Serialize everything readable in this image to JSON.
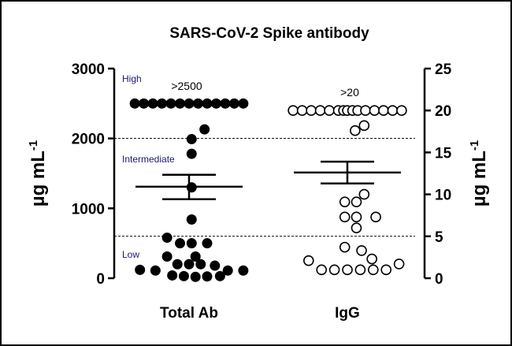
{
  "chart_data": {
    "type": "scatter",
    "title": "SARS-CoV-2 Spike antibody",
    "categories": [
      "Total Ab",
      "IgG"
    ],
    "left_axis": {
      "label_main": "µg mL",
      "label_sup": "-1",
      "ylim": [
        0,
        3000
      ],
      "ticks": [
        "0",
        "1000",
        "2000",
        "3000"
      ]
    },
    "right_axis": {
      "label_main": "µg mL",
      "label_sup": "-1",
      "ylim": [
        0,
        25
      ],
      "ticks": [
        "0",
        "5",
        "10",
        "15",
        "20",
        "25"
      ]
    },
    "zones": [
      {
        "label": "High",
        "boundary_left": 2000
      },
      {
        "label": "Intermediate",
        "boundary_left": 600
      },
      {
        "label": "Low"
      }
    ],
    "annotations": [
      ">2500",
      ">20"
    ],
    "series": [
      {
        "category": "Total Ab",
        "axis": "left",
        "marker": "filled",
        "mean": 1310,
        "sem": [
          1130,
          1480
        ],
        "points": [
          {
            "x": -0.42,
            "y": 2500
          },
          {
            "x": -0.35,
            "y": 2500
          },
          {
            "x": -0.28,
            "y": 2500
          },
          {
            "x": -0.21,
            "y": 2500
          },
          {
            "x": -0.14,
            "y": 2500
          },
          {
            "x": -0.07,
            "y": 2500
          },
          {
            "x": 0.0,
            "y": 2500
          },
          {
            "x": 0.07,
            "y": 2500
          },
          {
            "x": 0.14,
            "y": 2500
          },
          {
            "x": 0.21,
            "y": 2500
          },
          {
            "x": 0.28,
            "y": 2500
          },
          {
            "x": 0.35,
            "y": 2500
          },
          {
            "x": 0.42,
            "y": 2500
          },
          {
            "x": 0.12,
            "y": 2130
          },
          {
            "x": 0.02,
            "y": 1990
          },
          {
            "x": 0.02,
            "y": 1780
          },
          {
            "x": 0.02,
            "y": 1300
          },
          {
            "x": 0.02,
            "y": 840
          },
          {
            "x": -0.17,
            "y": 580
          },
          {
            "x": -0.07,
            "y": 500
          },
          {
            "x": 0.02,
            "y": 500
          },
          {
            "x": 0.14,
            "y": 500
          },
          {
            "x": -0.17,
            "y": 310
          },
          {
            "x": 0.05,
            "y": 310
          },
          {
            "x": -0.09,
            "y": 200
          },
          {
            "x": 0.0,
            "y": 200
          },
          {
            "x": 0.09,
            "y": 200
          },
          {
            "x": 0.2,
            "y": 180
          },
          {
            "x": -0.38,
            "y": 120
          },
          {
            "x": -0.26,
            "y": 110
          },
          {
            "x": 0.3,
            "y": 110
          },
          {
            "x": 0.42,
            "y": 110
          },
          {
            "x": -0.13,
            "y": 40
          },
          {
            "x": -0.04,
            "y": 30
          },
          {
            "x": 0.05,
            "y": 20
          },
          {
            "x": 0.14,
            "y": 25
          },
          {
            "x": 0.24,
            "y": 30
          }
        ]
      },
      {
        "category": "IgG",
        "axis": "right",
        "marker": "open",
        "mean": 12.6,
        "sem": [
          11.3,
          13.9
        ],
        "points": [
          {
            "x": -0.42,
            "y": 20
          },
          {
            "x": -0.35,
            "y": 20
          },
          {
            "x": -0.28,
            "y": 20
          },
          {
            "x": -0.21,
            "y": 20
          },
          {
            "x": -0.14,
            "y": 20
          },
          {
            "x": -0.07,
            "y": 20
          },
          {
            "x": -0.03,
            "y": 20
          },
          {
            "x": 0.0,
            "y": 20
          },
          {
            "x": 0.04,
            "y": 20
          },
          {
            "x": 0.08,
            "y": 20
          },
          {
            "x": 0.14,
            "y": 20
          },
          {
            "x": 0.21,
            "y": 20
          },
          {
            "x": 0.28,
            "y": 20
          },
          {
            "x": 0.35,
            "y": 20
          },
          {
            "x": 0.42,
            "y": 20
          },
          {
            "x": 0.06,
            "y": 17.6
          },
          {
            "x": 0.13,
            "y": 18.2
          },
          {
            "x": 0.13,
            "y": 10.0
          },
          {
            "x": -0.02,
            "y": 9.1
          },
          {
            "x": 0.07,
            "y": 9.1
          },
          {
            "x": -0.02,
            "y": 7.3
          },
          {
            "x": 0.07,
            "y": 7.3
          },
          {
            "x": 0.22,
            "y": 7.3
          },
          {
            "x": 0.07,
            "y": 6.0
          },
          {
            "x": -0.02,
            "y": 3.7
          },
          {
            "x": 0.11,
            "y": 3.3
          },
          {
            "x": 0.19,
            "y": 2.3
          },
          {
            "x": -0.3,
            "y": 2.1
          },
          {
            "x": -0.2,
            "y": 1.0
          },
          {
            "x": -0.1,
            "y": 1.0
          },
          {
            "x": 0.0,
            "y": 1.0
          },
          {
            "x": 0.1,
            "y": 1.0
          },
          {
            "x": 0.2,
            "y": 1.0
          },
          {
            "x": 0.3,
            "y": 1.0
          },
          {
            "x": 0.4,
            "y": 1.7
          }
        ]
      }
    ]
  }
}
